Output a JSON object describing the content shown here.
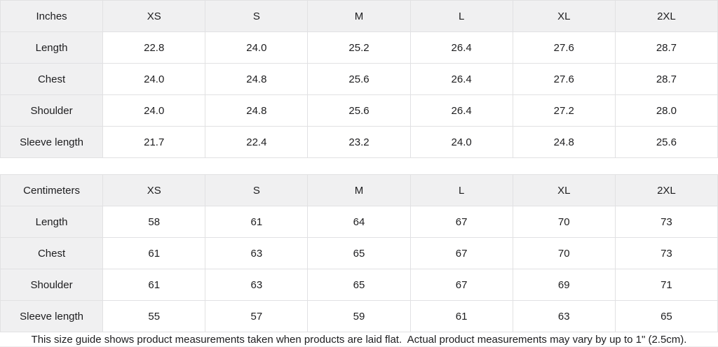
{
  "colors": {
    "header_cell_bg": "#f0f0f1",
    "data_cell_bg": "#ffffff",
    "grid_border": "#e1e1e3",
    "text": "#1d1d1f"
  },
  "tables": [
    {
      "unit_label": "Inches",
      "sizes": [
        "XS",
        "S",
        "M",
        "L",
        "XL",
        "2XL"
      ],
      "rows": [
        {
          "label": "Length",
          "values": [
            "22.8",
            "24.0",
            "25.2",
            "26.4",
            "27.6",
            "28.7"
          ]
        },
        {
          "label": "Chest",
          "values": [
            "24.0",
            "24.8",
            "25.6",
            "26.4",
            "27.6",
            "28.7"
          ]
        },
        {
          "label": "Shoulder",
          "values": [
            "24.0",
            "24.8",
            "25.6",
            "26.4",
            "27.2",
            "28.0"
          ]
        },
        {
          "label": "Sleeve length",
          "values": [
            "21.7",
            "22.4",
            "23.2",
            "24.0",
            "24.8",
            "25.6"
          ]
        }
      ]
    },
    {
      "unit_label": "Centimeters",
      "sizes": [
        "XS",
        "S",
        "M",
        "L",
        "XL",
        "2XL"
      ],
      "rows": [
        {
          "label": "Length",
          "values": [
            "58",
            "61",
            "64",
            "67",
            "70",
            "73"
          ]
        },
        {
          "label": "Chest",
          "values": [
            "61",
            "63",
            "65",
            "67",
            "70",
            "73"
          ]
        },
        {
          "label": "Shoulder",
          "values": [
            "61",
            "63",
            "65",
            "67",
            "69",
            "71"
          ]
        },
        {
          "label": "Sleeve length",
          "values": [
            "55",
            "57",
            "59",
            "61",
            "63",
            "65"
          ]
        }
      ]
    }
  ],
  "footer": {
    "note": "This size guide shows product measurements taken when products are laid flat.  Actual product measurements may vary by up to 1\" (2.5cm)."
  }
}
